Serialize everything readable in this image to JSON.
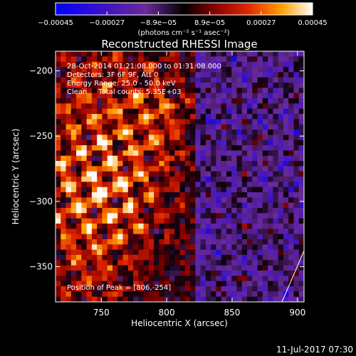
{
  "chart_data": {
    "type": "heatmap",
    "title": "Reconstructed RHESSI Image",
    "xlabel": "Heliocentric X (arcsec)",
    "ylabel": "Heliocentric Y (arcsec)",
    "xlim": [
      715,
      905
    ],
    "ylim": [
      -377,
      -185
    ],
    "x_ticks": [
      750,
      800,
      850,
      900
    ],
    "y_ticks": [
      -200,
      -250,
      -300,
      -350
    ],
    "x_tick_labels": [
      "750",
      "800",
      "850",
      "900"
    ],
    "y_tick_labels": [
      "−200",
      "−250",
      "−300",
      "−350"
    ],
    "colorbar": {
      "range": [
        -0.00045,
        0.00045
      ],
      "tick_labels": [
        "−0.00045",
        "−0.00027",
        "−8.9e−05",
        "8.9e−05",
        "0.00027",
        "0.00045"
      ],
      "units": "(photons cm⁻² s⁻¹ asec⁻²)",
      "colors": [
        "#0000ff",
        "#4a10b4",
        "#6a2a9a",
        "#000000",
        "#8a0000",
        "#d42000",
        "#ff7a00",
        "#ffd000",
        "#ffffff"
      ]
    },
    "annotations": [
      "28-Oct-2014 01:21:08.000 to 01:31:08.000",
      "Detectors: 3F 6F 9F, Att 0",
      "Energy Range: 25.0 - 50.0 keV",
      "Clean     Total counts: 5.35E+03",
      "Position of Peak = [806,-254]"
    ],
    "peak": [
      806,
      -254
    ],
    "grid": false,
    "legend": "none"
  },
  "footer": {
    "timestamp": "11-Jul-2017 07:30"
  }
}
